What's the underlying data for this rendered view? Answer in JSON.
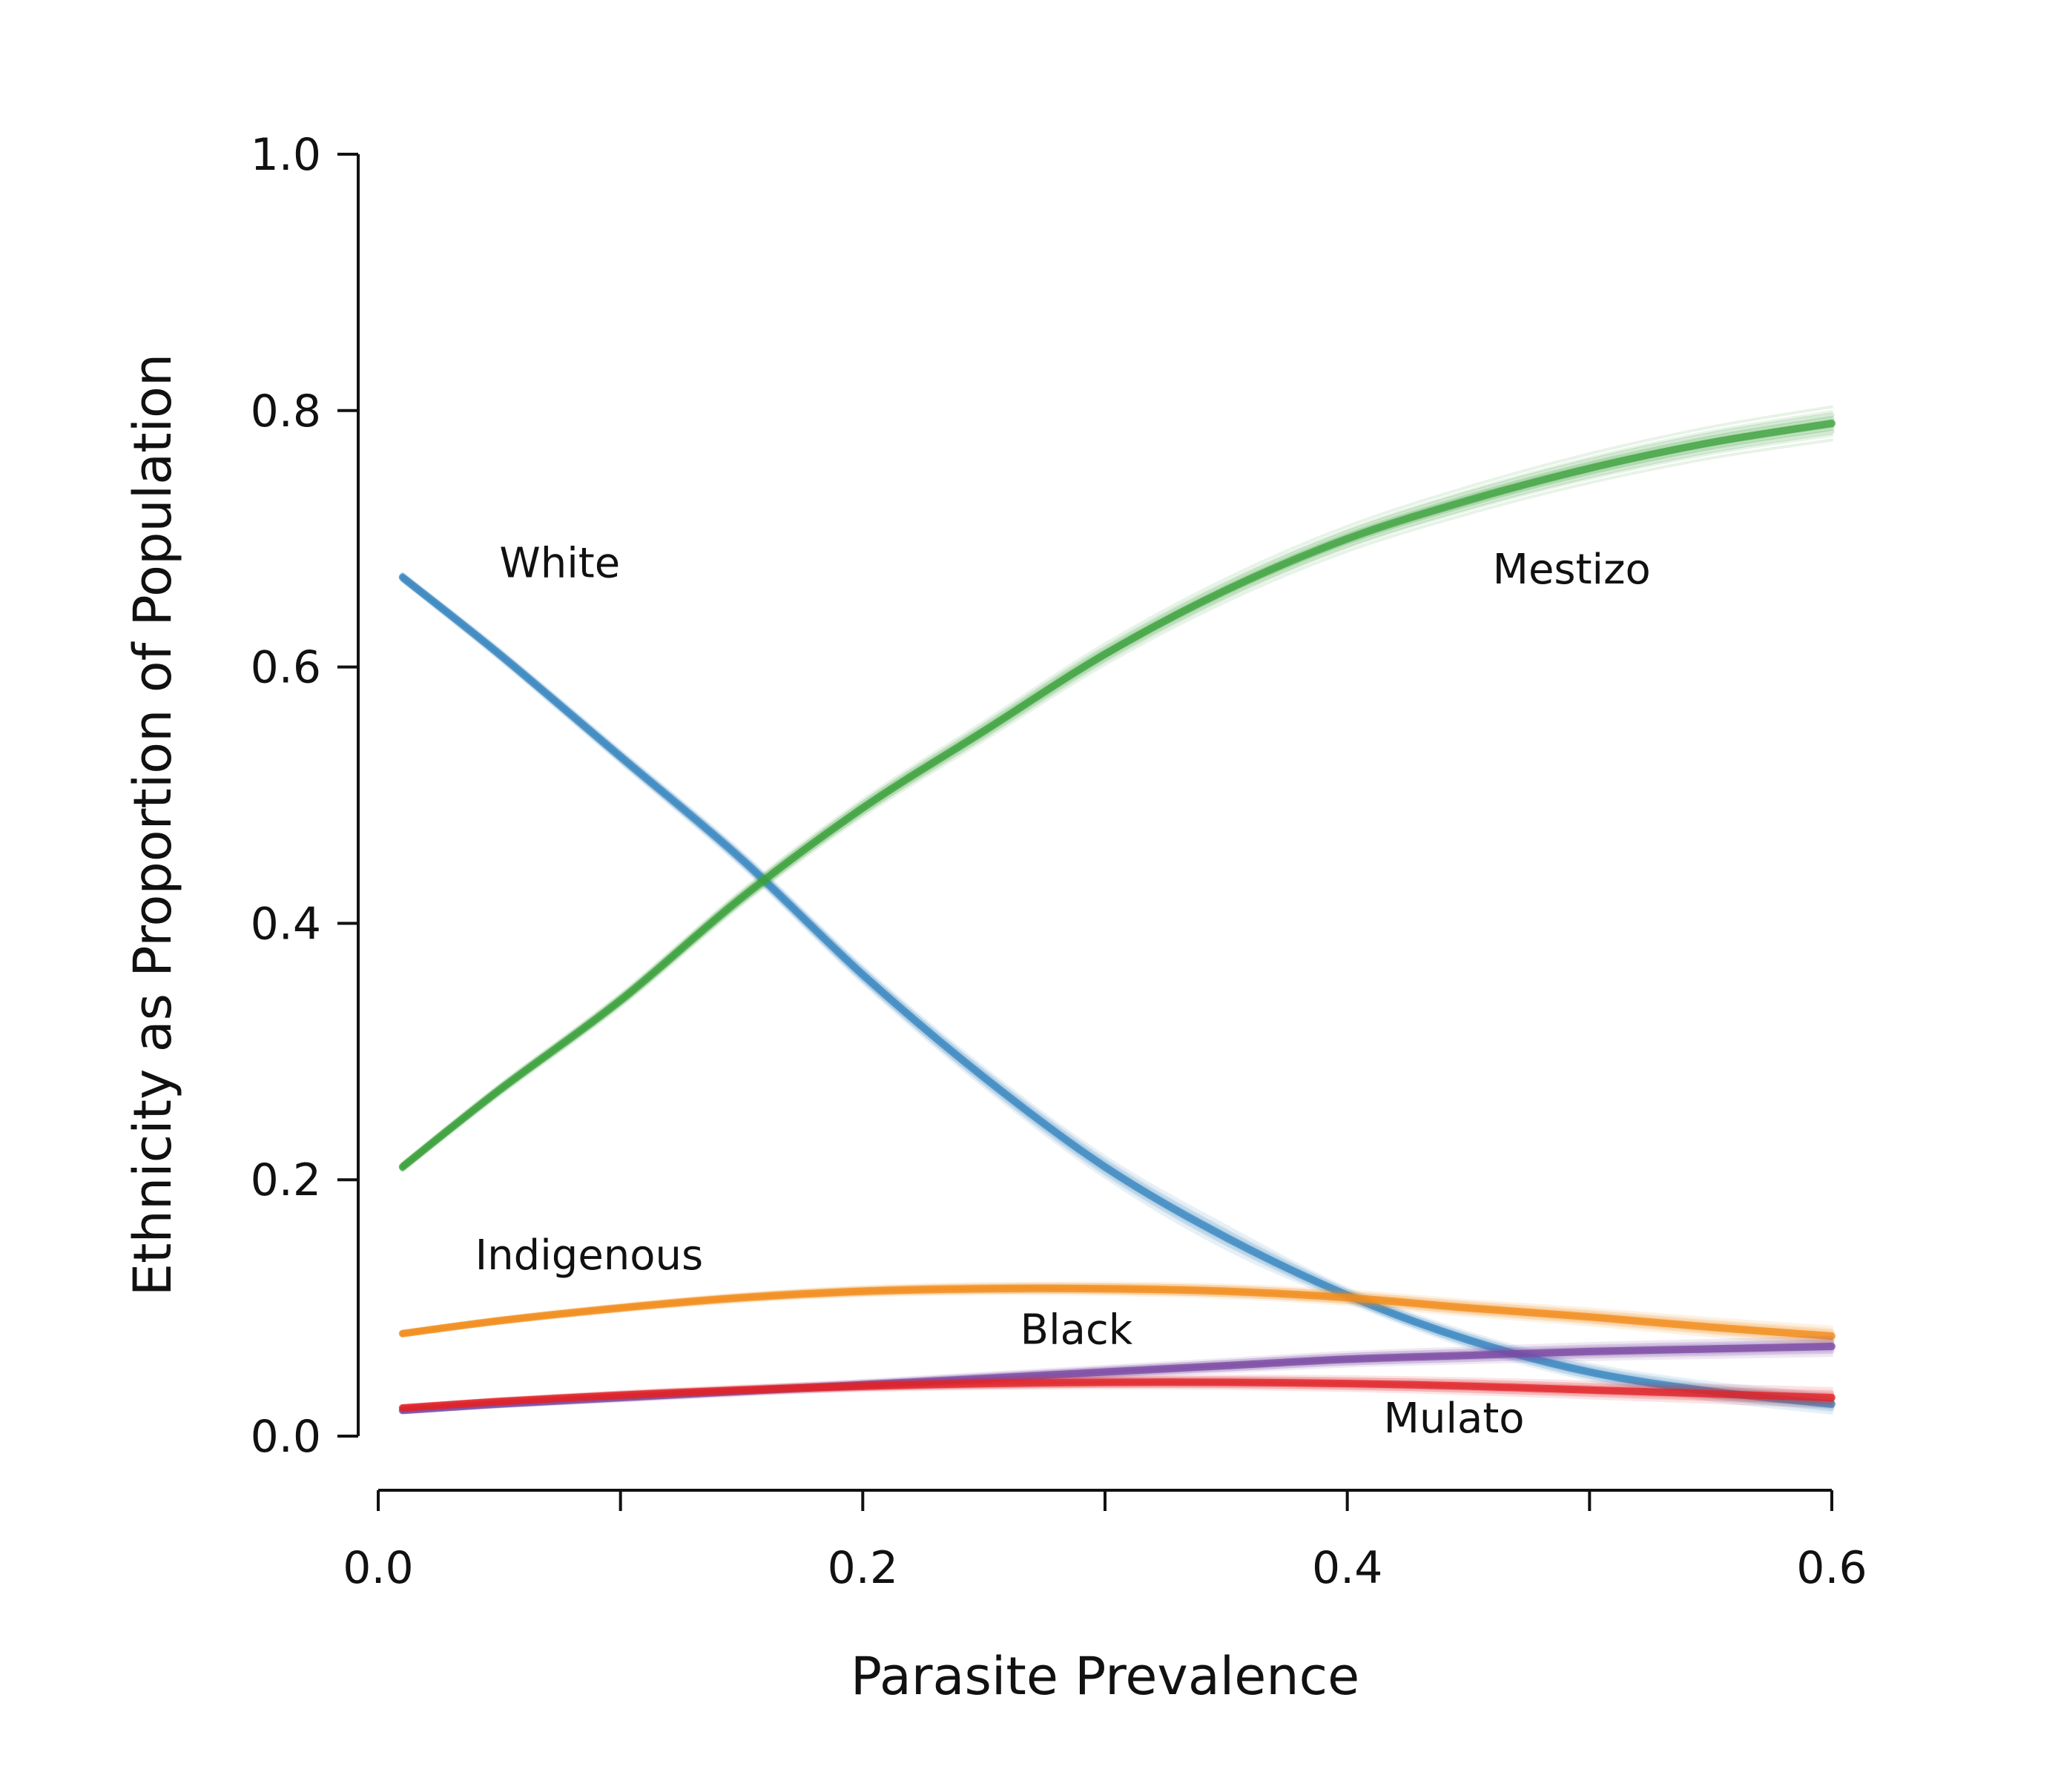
{
  "chart_data": {
    "type": "line",
    "title": "",
    "xlabel": "Parasite Prevalence",
    "ylabel": "Ethnicity as Proportion of  Population",
    "xlim": [
      0.0,
      0.6
    ],
    "ylim": [
      0.0,
      1.0
    ],
    "x_ticks": [
      0.0,
      0.1,
      0.2,
      0.3,
      0.4,
      0.5,
      0.6
    ],
    "x_tick_labels": [
      "0.0",
      "0.2",
      "0.4",
      "0.6"
    ],
    "x_tick_label_values": [
      0.0,
      0.2,
      0.4,
      0.6
    ],
    "y_ticks": [
      0.0,
      0.2,
      0.4,
      0.6,
      0.8,
      1.0
    ],
    "y_tick_labels": [
      "0.0",
      "0.2",
      "0.4",
      "0.6",
      "0.8",
      "1.0"
    ],
    "grid": false,
    "legend": "direct labels on lines",
    "x": [
      0.01,
      0.05,
      0.1,
      0.15,
      0.2,
      0.25,
      0.3,
      0.35,
      0.4,
      0.45,
      0.5,
      0.55,
      0.6
    ],
    "series": [
      {
        "name": "White",
        "color": "#3a87c0",
        "values": [
          0.67,
          0.61,
          0.53,
          0.45,
          0.36,
          0.28,
          0.21,
          0.155,
          0.11,
          0.075,
          0.05,
          0.035,
          0.025
        ],
        "label_pos": [
          0.05,
          0.67
        ]
      },
      {
        "name": "Mestizo",
        "color": "#3aa03a",
        "values": [
          0.21,
          0.27,
          0.34,
          0.42,
          0.49,
          0.55,
          0.61,
          0.66,
          0.7,
          0.73,
          0.755,
          0.775,
          0.79
        ],
        "label_pos": [
          0.46,
          0.665
        ]
      },
      {
        "name": "Indigenous",
        "color": "#f28c1c",
        "values": [
          0.08,
          0.09,
          0.1,
          0.108,
          0.113,
          0.115,
          0.115,
          0.113,
          0.108,
          0.1,
          0.093,
          0.085,
          0.078
        ],
        "label_pos": [
          0.04,
          0.13
        ]
      },
      {
        "name": "Black",
        "color": "#7b4aa3",
        "values": [
          0.02,
          0.025,
          0.03,
          0.035,
          0.04,
          0.045,
          0.05,
          0.055,
          0.06,
          0.063,
          0.066,
          0.068,
          0.07
        ],
        "label_pos": [
          0.265,
          0.072
        ]
      },
      {
        "name": "Mulato",
        "color": "#e0242a",
        "values": [
          0.022,
          0.027,
          0.032,
          0.036,
          0.039,
          0.041,
          0.042,
          0.042,
          0.041,
          0.039,
          0.036,
          0.033,
          0.03
        ],
        "label_pos": [
          0.415,
          0.003
        ]
      }
    ]
  }
}
